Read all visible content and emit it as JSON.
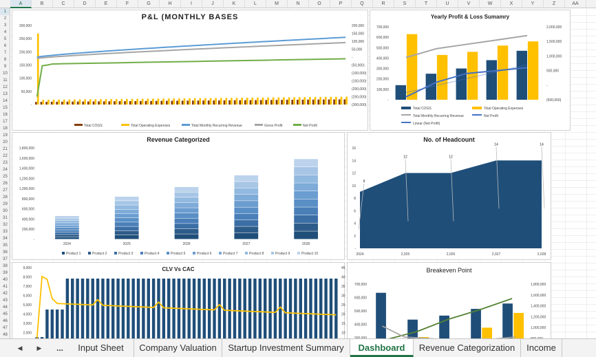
{
  "columns": [
    "A",
    "B",
    "C",
    "D",
    "E",
    "F",
    "G",
    "H",
    "I",
    "J",
    "K",
    "L",
    "M",
    "N",
    "O",
    "P",
    "Q",
    "R",
    "S",
    "T",
    "U",
    "V",
    "W",
    "X",
    "Y",
    "Z",
    "AA"
  ],
  "active_column": "A",
  "rows": [
    "1",
    "2",
    "3",
    "4",
    "5",
    "6",
    "7",
    "8",
    "9",
    "10",
    "11",
    "12",
    "13",
    "14",
    "15",
    "16",
    "17",
    "18",
    "19",
    "20",
    "21",
    "22",
    "23",
    "24",
    "25",
    "26",
    "27",
    "28",
    "29",
    "30",
    "31",
    "32",
    "33",
    "34",
    "35",
    "36",
    "37",
    "38",
    "39",
    "40",
    "41",
    "42",
    "43",
    "44",
    "45",
    "46",
    "47",
    "48"
  ],
  "active_row": "1",
  "tabs": {
    "nav_prev": "◀",
    "nav_next": "▶",
    "more": "...",
    "items": [
      "Input Sheet",
      "Company Valuation",
      "Startup Investment Summary",
      "Dashboard",
      "Revenue Categorization",
      "Income"
    ],
    "active": "Dashboard"
  },
  "colors": {
    "navy": "#1f4e79",
    "gold": "#ffc000",
    "gray": "#a5a5a5",
    "blue_line": "#5b9bd5",
    "green": "#70ad47",
    "brown": "#843c0c",
    "dark_green": "#548235"
  },
  "chart_data": [
    {
      "id": "pl",
      "type": "line",
      "title": "P&L (MONTHLY BASES",
      "left_axis_ticks": [
        "300,000",
        "250,000",
        "200,000",
        "150,000",
        "100,000",
        "50,000",
        "-"
      ],
      "right_axis_ticks": [
        "200,000",
        "150,000",
        "100,000",
        "50,000",
        "-",
        "(50,000)",
        "(100,000)",
        "(150,000)",
        "(200,000)",
        "(250,000)",
        "(300,000)"
      ],
      "legend": [
        "Total COGS",
        "Total Operating Expenses",
        "Total Monthly Recurring Revenue",
        "Gross Profit",
        "Net Profit"
      ],
      "months": 60,
      "series_lines": [
        {
          "name": "Total Monthly Recurring Revenue",
          "start": 180000,
          "end": 255000
        },
        {
          "name": "Gross Profit",
          "start": 175000,
          "end": 235000
        },
        {
          "name": "Net Profit",
          "start": -250000,
          "end": -10000
        }
      ],
      "bars_cogs": 20000,
      "bars_opex": 30000
    },
    {
      "id": "yearly",
      "type": "bar",
      "title": "Yearly Profit & Loss Sumamry",
      "categories": [
        "2024",
        "2025",
        "2026",
        "2027",
        "2028"
      ],
      "left_axis_ticks": [
        "700,000",
        "600,000",
        "500,000",
        "400,000",
        "300,000",
        "200,000",
        "100,000",
        "-"
      ],
      "right_axis_ticks": [
        "2,000,000",
        "1,500,000",
        "1,000,000",
        "500,000",
        "-",
        "(500,000)"
      ],
      "series": [
        {
          "name": "Total COGS",
          "values": [
            140000,
            250000,
            300000,
            380000,
            470000
          ]
        },
        {
          "name": "Total Operating Expenses",
          "values": [
            630000,
            430000,
            460000,
            520000,
            560000
          ]
        },
        {
          "name": "Total Monthly Recurring Revenue",
          "values": [
            950000,
            1250000,
            1400000,
            1550000,
            1700000
          ]
        },
        {
          "name": "Net Profit",
          "values": [
            -400000,
            100000,
            400000,
            500000,
            600000
          ]
        }
      ],
      "legend": [
        "Total COGS",
        "Total Operating Expenses",
        "Total Monthly Recurring Revenue",
        "Net Profit",
        "Linear (Net Profit)"
      ]
    },
    {
      "id": "revenue",
      "type": "bar",
      "title": "Revenue Categorized",
      "categories": [
        "2024",
        "2025",
        "2026",
        "2027",
        "2028"
      ],
      "y_ticks": [
        "1,800,000",
        "1,600,000",
        "1,400,000",
        "1,200,000",
        "1,000,000",
        "800,000",
        "600,000",
        "400,000",
        "200,000",
        "-"
      ],
      "totals": [
        460000,
        840000,
        1030000,
        1260000,
        1580000
      ],
      "legend": [
        "Product 1",
        "Product 2",
        "Product 3",
        "Product 4",
        "Product 5",
        "Product 6",
        "Product 7",
        "Product 8",
        "Product 9",
        "Product 10"
      ]
    },
    {
      "id": "headcount",
      "type": "area",
      "title": "No. of Headcount",
      "x_labels": [
        "2024",
        "2,025",
        "2,026",
        "2,027",
        "2,028"
      ],
      "y_ticks": [
        "16",
        "14",
        "12",
        "10",
        "8",
        "6",
        "4",
        "2",
        "-"
      ],
      "values": [
        9,
        12,
        12,
        14,
        14
      ],
      "data_labels": [
        "9",
        "12",
        "12",
        "14",
        "14"
      ]
    },
    {
      "id": "clv",
      "type": "bar",
      "title": "CLV Vs CAC",
      "left_axis_ticks": [
        "9,000",
        "8,000",
        "7,000",
        "6,000",
        "5,000",
        "4,000",
        "3,000",
        "2,000"
      ],
      "right_axis_ticks": [
        "45",
        "40",
        "35",
        "30",
        "25",
        "20",
        "15",
        "10"
      ]
    },
    {
      "id": "breakeven",
      "type": "bar",
      "title": "Breakeven Point",
      "left_axis_ticks": [
        "700,000",
        "600,000",
        "500,000",
        "400,000",
        "300,000"
      ],
      "right_axis_ticks": [
        "1,800,000",
        "1,600,000",
        "1,400,000",
        "1,200,000",
        "1,000,000",
        "800,000"
      ],
      "series": [
        {
          "name": "Navy",
          "values": [
            630000,
            430000,
            460000,
            510000,
            550000
          ]
        },
        {
          "name": "Gold",
          "values": [
            160000,
            300000,
            270000,
            370000,
            480000
          ]
        }
      ]
    }
  ]
}
